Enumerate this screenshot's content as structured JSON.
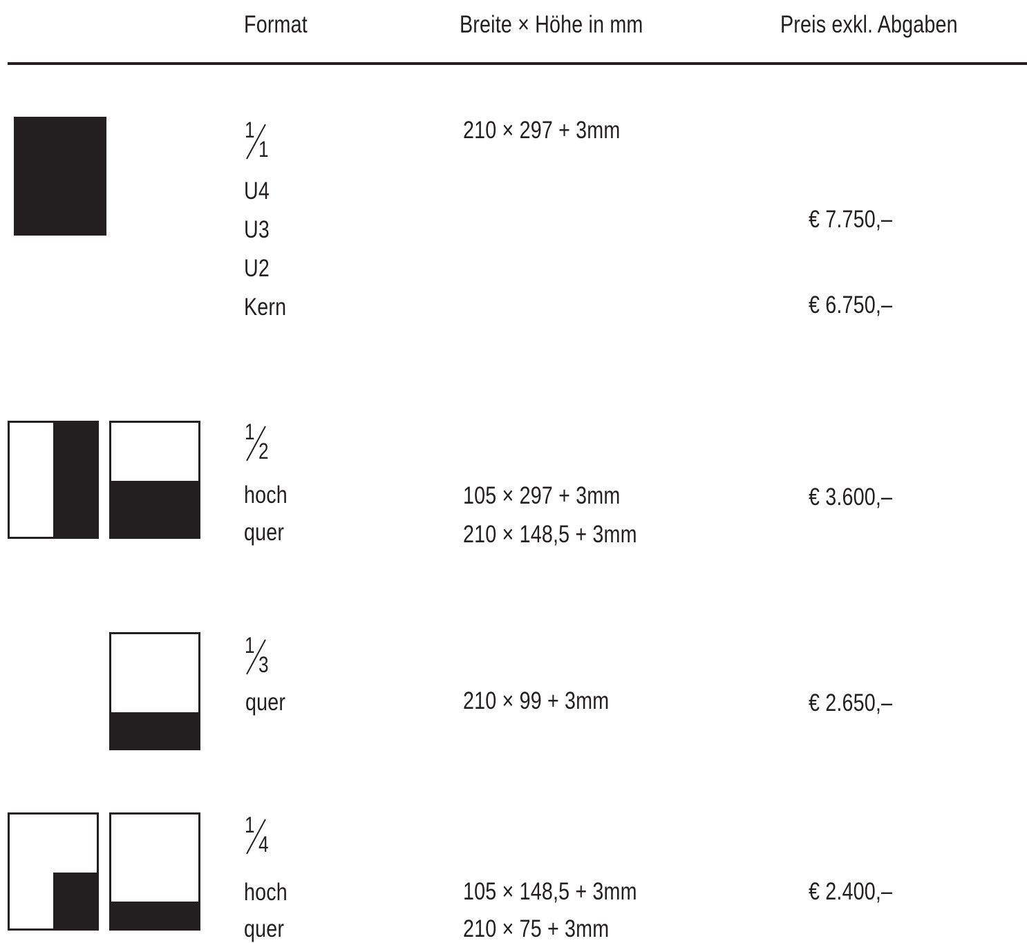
{
  "header": {
    "format": "Format",
    "dimensions": "Breite × Höhe in mm",
    "price": "Preis exkl. Abgaben"
  },
  "rows": [
    {
      "fraction": {
        "num": "1",
        "den": "1"
      },
      "lines": [
        "U4",
        "U3",
        "U2",
        "Kern"
      ],
      "dimensions": [
        "210 × 297 + 3mm"
      ],
      "prices": [
        "€ 7.750,–",
        "€ 6.750,–"
      ],
      "icons": [
        "full-page-icon"
      ]
    },
    {
      "fraction": {
        "num": "1",
        "den": "2"
      },
      "lines": [
        "hoch",
        "quer"
      ],
      "dimensions": [
        "105 × 297 + 3mm",
        "210 × 148,5 + 3mm"
      ],
      "prices": [
        "€ 3.600,–"
      ],
      "icons": [
        "half-page-vertical-icon",
        "half-page-horizontal-icon"
      ]
    },
    {
      "fraction": {
        "num": "1",
        "den": "3"
      },
      "lines": [
        "quer"
      ],
      "dimensions": [
        "210 × 99 + 3mm"
      ],
      "prices": [
        "€ 2.650,–"
      ],
      "icons": [
        "third-page-horizontal-icon"
      ]
    },
    {
      "fraction": {
        "num": "1",
        "den": "4"
      },
      "lines": [
        "hoch",
        "quer"
      ],
      "dimensions": [
        "105 × 148,5 + 3mm",
        "210 × 75 + 3mm"
      ],
      "prices": [
        "€ 2.400,–"
      ],
      "icons": [
        "quarter-page-vertical-icon",
        "quarter-page-horizontal-icon"
      ]
    }
  ],
  "colors": {
    "ink": "#231f20",
    "paper": "#ffffff"
  }
}
